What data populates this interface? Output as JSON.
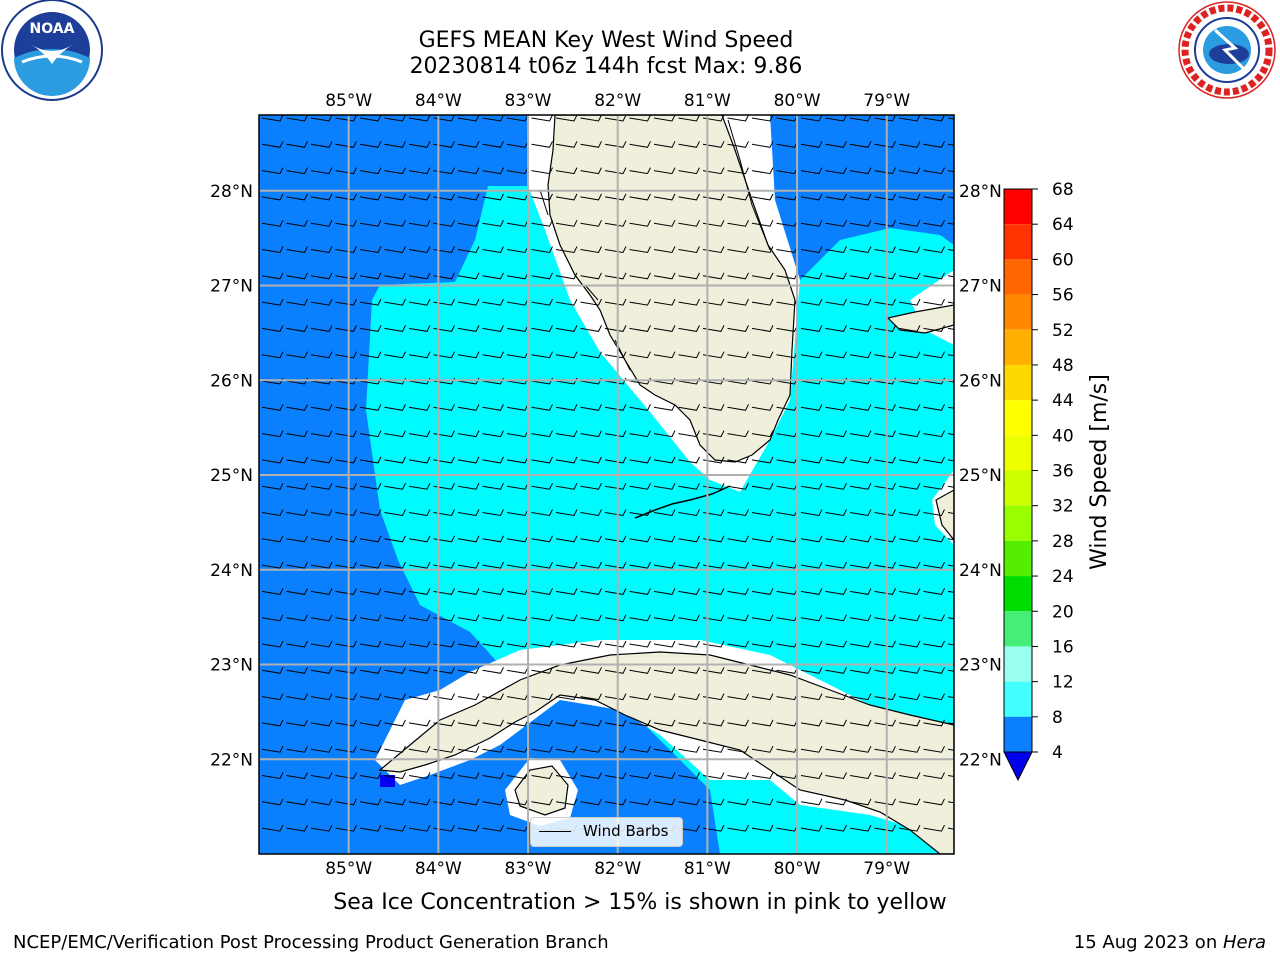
{
  "title_line1": "GEFS MEAN Key West Wind Speed",
  "title_line2": "20230814 t06z 144h fcst   Max: 9.86",
  "caption": "Sea Ice Concentration > 15% is shown in pink to yellow",
  "footer_left": "NCEP/EMC/Verification Post Processing Product Generation Branch",
  "footer_right_date": "15 Aug 2023 on ",
  "footer_right_host": "Hera",
  "legend_label": "Wind Barbs",
  "logos": {
    "left": "noaa-logo",
    "right": "nws-logo"
  },
  "map": {
    "lon_range": [
      -86.0,
      -78.25
    ],
    "lat_range": [
      21.0,
      28.8
    ],
    "lon_ticks": [
      "85°W",
      "84°W",
      "83°W",
      "82°W",
      "81°W",
      "80°W",
      "79°W"
    ],
    "lat_ticks": [
      "28°N",
      "27°N",
      "26°N",
      "25°N",
      "24°N",
      "23°N",
      "22°N"
    ],
    "colors": {
      "ocean_4_8": "#0a80ff",
      "ocean_8_12": "#00fbff",
      "land": "#efefdc",
      "nodata": "#ffffff",
      "grid": "#b0b0b0"
    }
  },
  "colorbar": {
    "label": "Wind Speed [m/s]",
    "ticks": [
      "68",
      "64",
      "60",
      "56",
      "52",
      "48",
      "44",
      "40",
      "36",
      "32",
      "28",
      "24",
      "20",
      "16",
      "12",
      "8",
      "4"
    ],
    "colors": [
      "#ff0000",
      "#ff3300",
      "#ff6600",
      "#ff8800",
      "#ffb000",
      "#ffd800",
      "#ffff00",
      "#eeff00",
      "#ccff00",
      "#99ff00",
      "#55ee00",
      "#00dd00",
      "#44ee77",
      "#99ffee",
      "#44ffff",
      "#00fbff",
      "#0a80ff"
    ],
    "extend_color": "#0000ee"
  }
}
